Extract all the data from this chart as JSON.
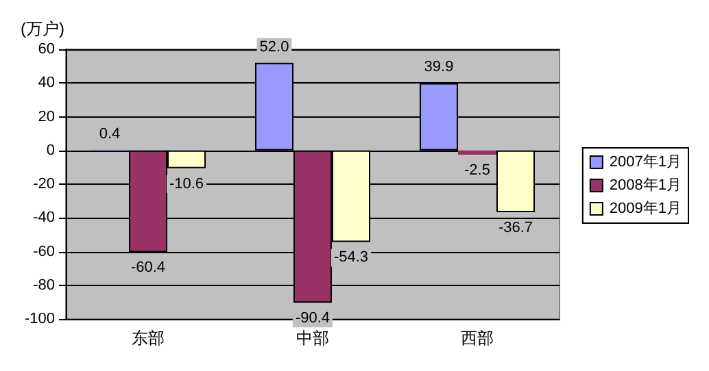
{
  "chart_data": {
    "type": "bar",
    "ylabel": "(万户)",
    "categories": [
      "东部",
      "中部",
      "西部"
    ],
    "series": [
      {
        "name": "2007年1月",
        "color": "#9999ff",
        "values": [
          0.4,
          52.0,
          39.9
        ],
        "value_labels": [
          "0.4",
          "52.0",
          "39.9"
        ]
      },
      {
        "name": "2008年1月",
        "color": "#993366",
        "values": [
          -60.4,
          -90.4,
          -2.5
        ],
        "value_labels": [
          "-60.4",
          "-90.4",
          "-2.5"
        ]
      },
      {
        "name": "2009年1月",
        "color": "#ffffcc",
        "values": [
          -10.6,
          -54.3,
          -36.7
        ],
        "value_labels": [
          "-10.6",
          "-54.3",
          "-36.7"
        ]
      }
    ],
    "ylim": [
      -100,
      60
    ],
    "yticks": [
      -100,
      -80,
      -60,
      -40,
      -20,
      0,
      20,
      40,
      60
    ],
    "grid": "y",
    "legend": "right"
  }
}
